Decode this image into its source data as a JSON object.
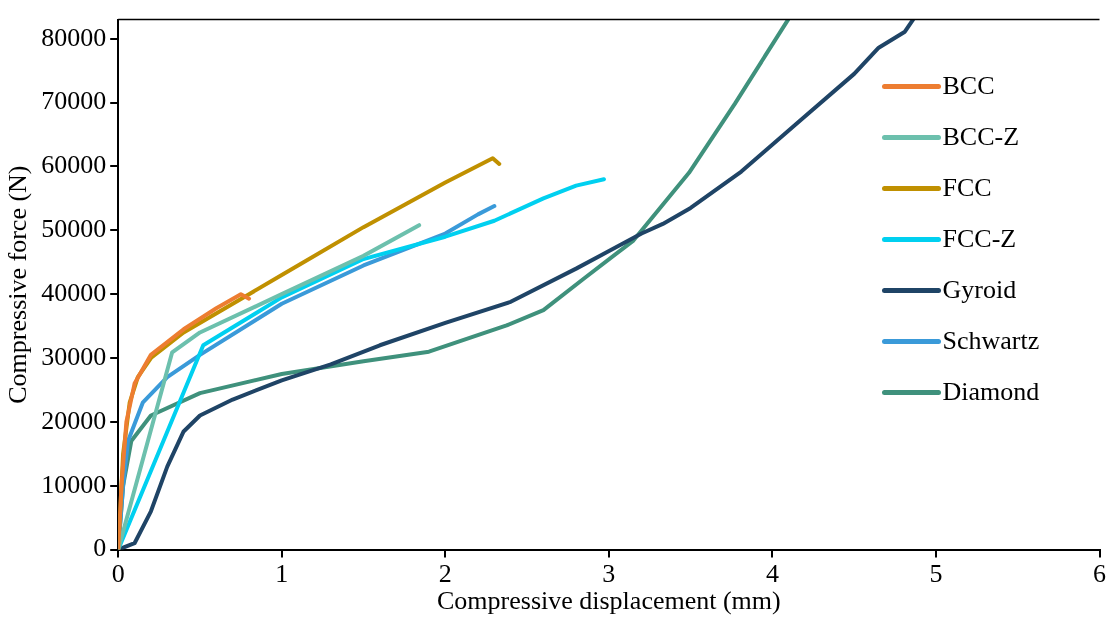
{
  "chart_data": {
    "type": "line",
    "xlabel": "Compressive displacement (mm)",
    "ylabel": "Compressive force (N)",
    "xlim": [
      0,
      6
    ],
    "xticks": [
      0,
      1,
      2,
      3,
      4,
      5,
      6
    ],
    "ylim": [
      0,
      83000
    ],
    "yticks": [
      0,
      10000,
      20000,
      30000,
      40000,
      50000,
      60000,
      70000,
      80000
    ],
    "grid": false,
    "legend": "right",
    "marker": "none",
    "line_style": "solid",
    "series": [
      {
        "name": "BCC",
        "color": "#ed7d31",
        "x": [
          0,
          0.02,
          0.05,
          0.1,
          0.2,
          0.4,
          0.6,
          0.75,
          0.8
        ],
        "values": [
          0,
          10000,
          20000,
          26000,
          30500,
          34500,
          37800,
          40000,
          39300
        ]
      },
      {
        "name": "BCC-Z",
        "color": "#6cc0ad",
        "x": [
          0,
          0.33,
          0.5,
          1,
          1.5,
          1.84
        ],
        "values": [
          0,
          30900,
          34000,
          40000,
          46000,
          50800
        ]
      },
      {
        "name": "FCC",
        "color": "#c09000",
        "x": [
          0,
          0.03,
          0.07,
          0.12,
          0.2,
          0.4,
          0.8,
          1,
          1.5,
          2,
          2.29,
          2.33
        ],
        "values": [
          0,
          15000,
          23000,
          27000,
          30000,
          34000,
          40000,
          43000,
          50500,
          57500,
          61300,
          60400
        ]
      },
      {
        "name": "FCC-Z",
        "color": "#00d0f0",
        "x": [
          0,
          0.52,
          1,
          1.5,
          2,
          2.3,
          2.6,
          2.8,
          2.97
        ],
        "values": [
          0,
          32000,
          39500,
          45500,
          49000,
          51500,
          55000,
          57000,
          58000
        ]
      },
      {
        "name": "Gyroid",
        "color": "#1f4466",
        "x": [
          0,
          0.1,
          0.2,
          0.3,
          0.4,
          0.5,
          0.7,
          1,
          1.3,
          1.6,
          2,
          2.4,
          2.8,
          3.2,
          3.33,
          3.5,
          3.81,
          4.17,
          4.5,
          4.65,
          4.81,
          4.86
        ],
        "values": [
          0,
          1000,
          6000,
          13000,
          18500,
          21000,
          23500,
          26500,
          29000,
          32000,
          35500,
          38800,
          44000,
          49500,
          51000,
          53500,
          59200,
          67200,
          74500,
          78600,
          81100,
          83000
        ]
      },
      {
        "name": "Schwartz",
        "color": "#3a9ad9",
        "x": [
          0,
          0.03,
          0.06,
          0.15,
          0.3,
          0.5,
          1,
          1.5,
          2,
          2.2,
          2.3
        ],
        "values": [
          0,
          10000,
          17000,
          23000,
          27000,
          30500,
          38500,
          44500,
          49500,
          52500,
          53800
        ]
      },
      {
        "name": "Diamond",
        "color": "#3f917c",
        "x": [
          0,
          0.03,
          0.08,
          0.2,
          0.5,
          1,
          1.5,
          1.9,
          2.375,
          2.6,
          2.85,
          3.15,
          3.49,
          3.77,
          4.096
        ],
        "values": [
          0,
          10000,
          17000,
          21000,
          24500,
          27500,
          29500,
          31000,
          35100,
          37500,
          42500,
          48400,
          59000,
          69800,
          83000
        ]
      }
    ]
  }
}
